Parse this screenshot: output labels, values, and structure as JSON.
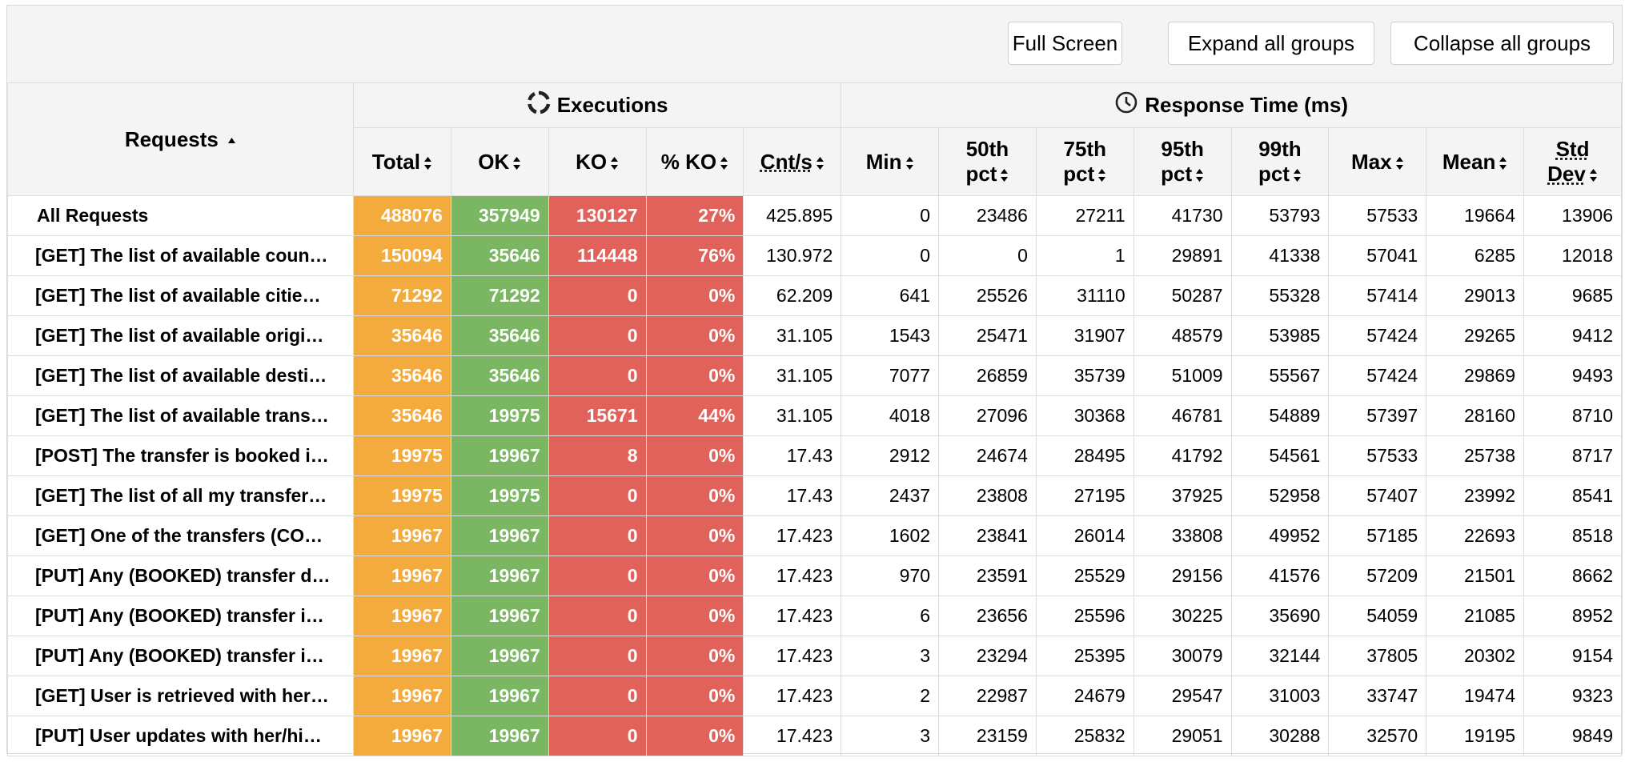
{
  "toolbar": {
    "full_screen": "Full Screen",
    "expand_all": "Expand all groups",
    "collapse_all": "Collapse all groups"
  },
  "header": {
    "requests": "Requests",
    "executions": "Executions",
    "response_time": "Response Time (ms)",
    "columns": {
      "total": "Total",
      "ok": "OK",
      "ko": "KO",
      "pko": "% KO",
      "cnt": "Cnt/s",
      "min": "Min",
      "p50": [
        "50th",
        "pct"
      ],
      "p75": [
        "75th",
        "pct"
      ],
      "p95": [
        "95th",
        "pct"
      ],
      "p99": [
        "99th",
        "pct"
      ],
      "max": "Max",
      "mean": "Mean",
      "std": [
        "Std",
        "Dev"
      ]
    }
  },
  "colors": {
    "total": "#f4ab3e",
    "ok": "#7bb662",
    "ko": "#e0625a"
  },
  "rows": [
    {
      "name": "All Requests",
      "total": "488076",
      "ok": "357949",
      "ko": "130127",
      "pko": "27%",
      "cnt": "425.895",
      "min": "0",
      "p50": "23486",
      "p75": "27211",
      "p95": "41730",
      "p99": "53793",
      "max": "57533",
      "mean": "19664",
      "std": "13906"
    },
    {
      "name": "[GET] The list of available coun…",
      "total": "150094",
      "ok": "35646",
      "ko": "114448",
      "pko": "76%",
      "cnt": "130.972",
      "min": "0",
      "p50": "0",
      "p75": "1",
      "p95": "29891",
      "p99": "41338",
      "max": "57041",
      "mean": "6285",
      "std": "12018"
    },
    {
      "name": "[GET] The list of available citie…",
      "total": "71292",
      "ok": "71292",
      "ko": "0",
      "pko": "0%",
      "cnt": "62.209",
      "min": "641",
      "p50": "25526",
      "p75": "31110",
      "p95": "50287",
      "p99": "55328",
      "max": "57414",
      "mean": "29013",
      "std": "9685"
    },
    {
      "name": "[GET] The list of available origi…",
      "total": "35646",
      "ok": "35646",
      "ko": "0",
      "pko": "0%",
      "cnt": "31.105",
      "min": "1543",
      "p50": "25471",
      "p75": "31907",
      "p95": "48579",
      "p99": "53985",
      "max": "57424",
      "mean": "29265",
      "std": "9412"
    },
    {
      "name": "[GET] The list of available desti…",
      "total": "35646",
      "ok": "35646",
      "ko": "0",
      "pko": "0%",
      "cnt": "31.105",
      "min": "7077",
      "p50": "26859",
      "p75": "35739",
      "p95": "51009",
      "p99": "55567",
      "max": "57424",
      "mean": "29869",
      "std": "9493"
    },
    {
      "name": "[GET] The list of available trans…",
      "total": "35646",
      "ok": "19975",
      "ko": "15671",
      "pko": "44%",
      "cnt": "31.105",
      "min": "4018",
      "p50": "27096",
      "p75": "30368",
      "p95": "46781",
      "p99": "54889",
      "max": "57397",
      "mean": "28160",
      "std": "8710"
    },
    {
      "name": "[POST] The transfer is booked i…",
      "total": "19975",
      "ok": "19967",
      "ko": "8",
      "pko": "0%",
      "cnt": "17.43",
      "min": "2912",
      "p50": "24674",
      "p75": "28495",
      "p95": "41792",
      "p99": "54561",
      "max": "57533",
      "mean": "25738",
      "std": "8717"
    },
    {
      "name": "[GET] The list of all my transfer…",
      "total": "19975",
      "ok": "19975",
      "ko": "0",
      "pko": "0%",
      "cnt": "17.43",
      "min": "2437",
      "p50": "23808",
      "p75": "27195",
      "p95": "37925",
      "p99": "52958",
      "max": "57407",
      "mean": "23992",
      "std": "8541"
    },
    {
      "name": "[GET] One of the transfers (CO…",
      "total": "19967",
      "ok": "19967",
      "ko": "0",
      "pko": "0%",
      "cnt": "17.423",
      "min": "1602",
      "p50": "23841",
      "p75": "26014",
      "p95": "33808",
      "p99": "49952",
      "max": "57185",
      "mean": "22693",
      "std": "8518"
    },
    {
      "name": "[PUT] Any (BOOKED) transfer d…",
      "total": "19967",
      "ok": "19967",
      "ko": "0",
      "pko": "0%",
      "cnt": "17.423",
      "min": "970",
      "p50": "23591",
      "p75": "25529",
      "p95": "29156",
      "p99": "41576",
      "max": "57209",
      "mean": "21501",
      "std": "8662"
    },
    {
      "name": "[PUT] Any (BOOKED) transfer i…",
      "total": "19967",
      "ok": "19967",
      "ko": "0",
      "pko": "0%",
      "cnt": "17.423",
      "min": "6",
      "p50": "23656",
      "p75": "25596",
      "p95": "30225",
      "p99": "35690",
      "max": "54059",
      "mean": "21085",
      "std": "8952"
    },
    {
      "name": "[PUT] Any (BOOKED) transfer i…",
      "total": "19967",
      "ok": "19967",
      "ko": "0",
      "pko": "0%",
      "cnt": "17.423",
      "min": "3",
      "p50": "23294",
      "p75": "25395",
      "p95": "30079",
      "p99": "32144",
      "max": "37805",
      "mean": "20302",
      "std": "9154"
    },
    {
      "name": "[GET] User is retrieved with her…",
      "total": "19967",
      "ok": "19967",
      "ko": "0",
      "pko": "0%",
      "cnt": "17.423",
      "min": "2",
      "p50": "22987",
      "p75": "24679",
      "p95": "29547",
      "p99": "31003",
      "max": "33747",
      "mean": "19474",
      "std": "9323"
    },
    {
      "name": "[PUT] User updates with her/hi…",
      "total": "19967",
      "ok": "19967",
      "ko": "0",
      "pko": "0%",
      "cnt": "17.423",
      "min": "3",
      "p50": "23159",
      "p75": "25832",
      "p95": "29051",
      "p99": "30288",
      "max": "32570",
      "mean": "19195",
      "std": "9849"
    }
  ]
}
